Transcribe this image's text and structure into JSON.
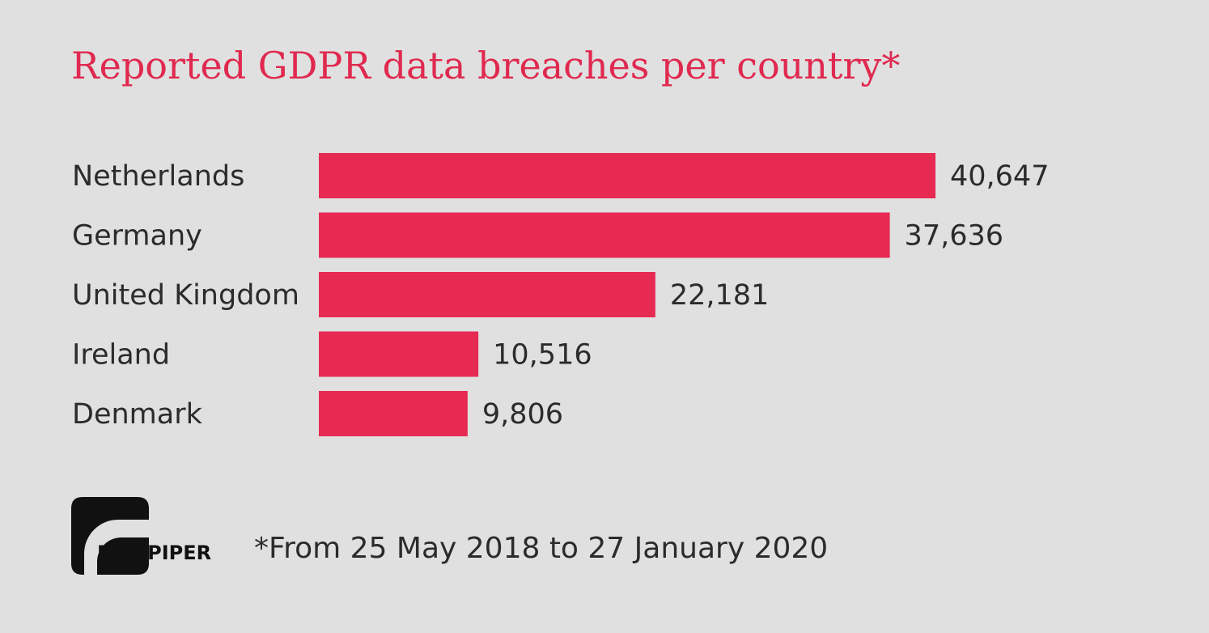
{
  "colors": {
    "background": "#e0e0e0",
    "bar": "#e62a52",
    "title": "#e0294f",
    "text": "#2b2b2b",
    "logo": "#111111"
  },
  "logo": {
    "text": "DLA PIPER"
  },
  "footnote": "*From 25 May 2018 to 27 January 2020",
  "chart_data": {
    "type": "bar",
    "orientation": "horizontal",
    "title": "Reported GDPR data breaches per country*",
    "categories": [
      "Netherlands",
      "Germany",
      "United Kingdom",
      "Ireland",
      "Denmark"
    ],
    "values": [
      40647,
      37636,
      22181,
      10516,
      9806
    ],
    "value_labels": [
      "40,647",
      "37,636",
      "22,181",
      "10,516",
      "9,806"
    ],
    "xlabel": "",
    "ylabel": "",
    "xlim": [
      0,
      40647
    ],
    "grid": false,
    "legend": "none"
  }
}
